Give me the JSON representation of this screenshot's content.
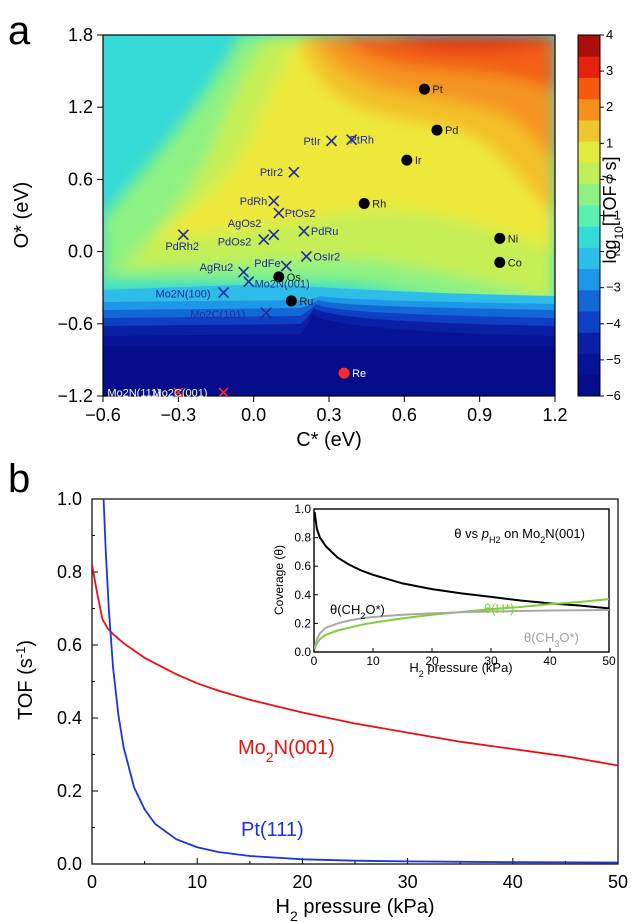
{
  "panel_a_letter": "a",
  "panel_b_letter": "b",
  "chart_data": [
    {
      "type": "heatmap",
      "xlabel": "C* (eV)",
      "ylabel": "O* (eV)",
      "xlim": [
        -0.6,
        1.2
      ],
      "ylim": [
        -1.2,
        1.8
      ],
      "xticks": [
        "−0.6",
        "−0.3",
        "0.0",
        "0.3",
        "0.6",
        "0.9",
        "1.2"
      ],
      "yticks": [
        "1.8",
        "1.2",
        "0.6",
        "0.0",
        "−0.6",
        "−1.2"
      ],
      "colorbar": {
        "label": "log10[TOF / s]",
        "label_prefix": "log",
        "label_sub": "10",
        "label_suffix": "[TOF / s]",
        "min": -6,
        "max": 4,
        "ticks": [
          "4",
          "3",
          "2",
          "1",
          "0",
          "−1",
          "−2",
          "−3",
          "−4",
          "−5",
          "−6"
        ],
        "colors": [
          "#ab0e08",
          "#e3230f",
          "#f5580f",
          "#f6901c",
          "#eec631",
          "#e3ea3e",
          "#bff05a",
          "#8df283",
          "#5bf0b0",
          "#35dbd6",
          "#2dbde8",
          "#1f97e8",
          "#1468d6",
          "#0e3fc4",
          "#0a1fa6",
          "#071396",
          "#050d8a"
        ]
      },
      "metals": [
        {
          "name": "Pt",
          "x": 0.68,
          "y": 1.35
        },
        {
          "name": "Pd",
          "x": 0.73,
          "y": 1.01
        },
        {
          "name": "Ir",
          "x": 0.61,
          "y": 0.76
        },
        {
          "name": "Rh",
          "x": 0.44,
          "y": 0.4
        },
        {
          "name": "Ni",
          "x": 0.98,
          "y": 0.11
        },
        {
          "name": "Co",
          "x": 0.98,
          "y": -0.09
        },
        {
          "name": "Os",
          "x": 0.1,
          "y": -0.21
        },
        {
          "name": "Ru",
          "x": 0.15,
          "y": -0.41
        },
        {
          "name": "Re",
          "x": 0.36,
          "y": -1.01
        }
      ],
      "alloys": [
        {
          "name": "PtIr",
          "x": 0.31,
          "y": 0.92
        },
        {
          "name": "PtRh",
          "x": 0.39,
          "y": 0.93
        },
        {
          "name": "PtIr2",
          "x": 0.16,
          "y": 0.66
        },
        {
          "name": "PdRh",
          "x": 0.08,
          "y": 0.42
        },
        {
          "name": "PtOs2",
          "x": 0.1,
          "y": 0.32
        },
        {
          "name": "AgOs2",
          "x": 0.08,
          "y": 0.14
        },
        {
          "name": "PdOs2",
          "x": 0.04,
          "y": 0.1
        },
        {
          "name": "PdRu",
          "x": 0.2,
          "y": 0.17
        },
        {
          "name": "PdRh2",
          "x": -0.28,
          "y": 0.14
        },
        {
          "name": "OsIr2",
          "x": 0.21,
          "y": -0.04
        },
        {
          "name": "AgRu2",
          "x": -0.04,
          "y": -0.17
        },
        {
          "name": "PdFe",
          "x": 0.13,
          "y": -0.12
        },
        {
          "name": "Mo2N(100)",
          "x": -0.12,
          "y": -0.34
        },
        {
          "name": "Mo2N(001)",
          "x": -0.02,
          "y": -0.25
        },
        {
          "name": "Mo2C(101)",
          "x": 0.05,
          "y": -0.51
        }
      ],
      "carbides_nitrides": [
        {
          "name": "Mo2N(111)",
          "x": -0.3,
          "y": -1.17
        },
        {
          "name": "Mo2C(001)",
          "x": -0.12,
          "y": -1.17
        }
      ]
    },
    {
      "type": "line",
      "xlabel": "H2 pressure (kPa)",
      "xlabel_prefix": "H",
      "xlabel_sub": "2",
      "xlabel_suffix": " pressure (kPa)",
      "ylabel": "TOF (s-1)",
      "ylabel_prefix": "TOF (s",
      "ylabel_sup": "-1",
      "ylabel_suffix": ")",
      "xlim": [
        0,
        50
      ],
      "ylim": [
        0,
        1.0
      ],
      "xticks": [
        "0",
        "10",
        "20",
        "30",
        "40",
        "50"
      ],
      "yticks": [
        "0.0",
        "0.2",
        "0.4",
        "0.6",
        "0.8",
        "1.0"
      ],
      "series": [
        {
          "name": "Mo2N(001)",
          "label_prefix": "Mo",
          "label_sub": "2",
          "label_suffix": "N(001)",
          "color": "#e8110f",
          "x": [
            0,
            0.5,
            1,
            1.5,
            2,
            3,
            4,
            5,
            6,
            8,
            10,
            12,
            15,
            20,
            25,
            30,
            35,
            40,
            45,
            50
          ],
          "y": [
            0.82,
            0.74,
            0.67,
            0.645,
            0.63,
            0.605,
            0.585,
            0.565,
            0.55,
            0.52,
            0.495,
            0.475,
            0.45,
            0.415,
            0.385,
            0.36,
            0.335,
            0.315,
            0.295,
            0.27
          ]
        },
        {
          "name": "Pt(111)",
          "label_prefix": "Pt(111)",
          "label_sub": "",
          "label_suffix": "",
          "color": "#1a35e0",
          "x": [
            1.1,
            1.3,
            1.6,
            2,
            2.5,
            3,
            4,
            5,
            6,
            8,
            10,
            12,
            15,
            20,
            25,
            30,
            40,
            50
          ],
          "y": [
            1.0,
            0.86,
            0.7,
            0.54,
            0.41,
            0.32,
            0.21,
            0.15,
            0.11,
            0.068,
            0.046,
            0.033,
            0.022,
            0.013,
            0.009,
            0.007,
            0.005,
            0.004
          ]
        }
      ],
      "inset": {
        "title_prefix": "θ vs ",
        "title_p": "p",
        "title_sub": "H2",
        "title_suffix": " on Mo",
        "title_sub2": "2",
        "title_end": "N(001)",
        "xlabel_prefix": "H",
        "xlabel_sub": "2",
        "xlabel_suffix": " pressure (kPa)",
        "ylabel": "Coverage (θ)",
        "xlim": [
          0,
          50
        ],
        "ylim": [
          0,
          1.0
        ],
        "xticks": [
          "0",
          "10",
          "20",
          "30",
          "40",
          "50"
        ],
        "yticks": [
          "0.0",
          "0.2",
          "0.4",
          "0.6",
          "0.8",
          "1.0"
        ],
        "series": [
          {
            "name": "θ(CH2O*)",
            "l1": "θ(CH",
            "s1": "2",
            "l2": "O*)",
            "color": "#000000",
            "x": [
              0.1,
              0.5,
              1,
              2,
              4,
              6,
              8,
              10,
              15,
              20,
              25,
              30,
              35,
              40,
              45,
              50
            ],
            "y": [
              0.98,
              0.86,
              0.8,
              0.74,
              0.66,
              0.61,
              0.57,
              0.54,
              0.48,
              0.44,
              0.41,
              0.385,
              0.36,
              0.34,
              0.325,
              0.305
            ]
          },
          {
            "name": "θ(H*)",
            "l1": "θ(H*)",
            "s1": "",
            "l2": "",
            "color": "#7fcf3a",
            "x": [
              0.1,
              0.5,
              1,
              2,
              4,
              6,
              8,
              10,
              15,
              20,
              25,
              30,
              35,
              40,
              45,
              50
            ],
            "y": [
              0.02,
              0.06,
              0.09,
              0.12,
              0.15,
              0.17,
              0.19,
              0.205,
              0.235,
              0.26,
              0.28,
              0.3,
              0.315,
              0.335,
              0.35,
              0.37
            ]
          },
          {
            "name": "θ(CH3O*)",
            "l1": "θ(CH",
            "s1": "3",
            "l2": "O*)",
            "color": "#a8a8a8",
            "x": [
              0.1,
              0.5,
              1,
              2,
              4,
              6,
              8,
              10,
              15,
              20,
              25,
              30,
              35,
              40,
              45,
              50
            ],
            "y": [
              0.03,
              0.09,
              0.13,
              0.17,
              0.2,
              0.22,
              0.235,
              0.245,
              0.26,
              0.27,
              0.278,
              0.283,
              0.287,
              0.29,
              0.292,
              0.294
            ]
          }
        ]
      }
    }
  ]
}
